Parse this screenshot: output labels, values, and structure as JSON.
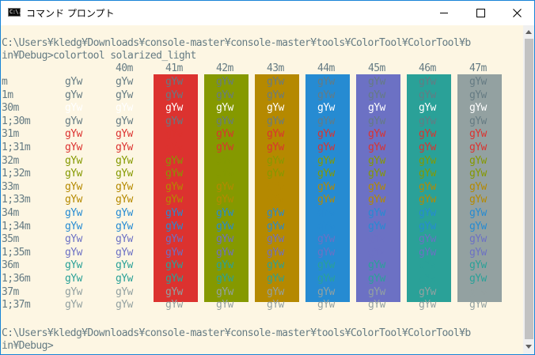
{
  "window": {
    "title": "コマンド プロンプト",
    "icon": "cmd-icon",
    "icon_text": "C:\\.",
    "buttons": {
      "minimize": "minimize-icon",
      "maximize": "maximize-icon",
      "close": "close-icon"
    }
  },
  "console": {
    "prompt_lines": [
      "C:\\Users¥kledg¥Downloads¥console-master¥console-master¥tools¥ColorTool¥ColorTool¥b",
      "in¥Debug>colortool solarized_light"
    ],
    "final_prompt_lines": [
      "C:\\Users¥kledg¥Downloads¥console-master¥console-master¥tools¥ColorTool¥ColorTool¥b",
      "in¥Debug>"
    ],
    "sample_text": "gYw",
    "column_headers": [
      "40m",
      "41m",
      "42m",
      "43m",
      "44m",
      "45m",
      "46m",
      "47m"
    ],
    "row_labels": [
      "m",
      "1m",
      "30m",
      "1;30m",
      "31m",
      "1;31m",
      "32m",
      "1;32m",
      "33m",
      "1;33m",
      "34m",
      "1;34m",
      "35m",
      "1;35m",
      "36m",
      "1;36m",
      "37m",
      "1;37m"
    ],
    "background_colors": [
      "#dc322f",
      "#859900",
      "#b58900",
      "#268bd2",
      "#6c71c4",
      "#2aa198",
      "#93a1a1"
    ],
    "foreground_colors": {
      "default": "#657b83",
      "30m": "#ffffff",
      "1;30m": "#657b83",
      "31m": "#dc322f",
      "1;31m": "#dc322f",
      "32m": "#859900",
      "1;32m": "#859900",
      "33m": "#b58900",
      "1;33m": "#b58900",
      "34m": "#268bd2",
      "1;34m": "#268bd2",
      "35m": "#6c71c4",
      "1;35m": "#6c71c4",
      "36m": "#2aa198",
      "1;36m": "#2aa198",
      "37m": "#93a1a1",
      "1;37m": "#93a1a1"
    },
    "console_background": "#fdf6e3"
  },
  "scrollbar": {
    "up": "scroll-up-arrow-icon",
    "down": "scroll-down-arrow-icon"
  }
}
